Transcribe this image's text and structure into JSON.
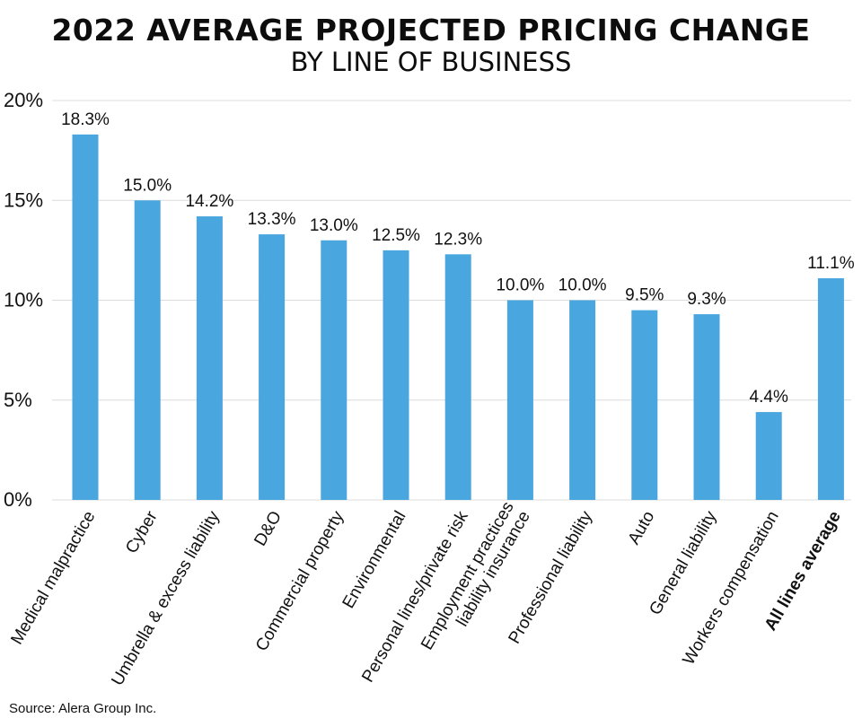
{
  "title": "2022 AVERAGE PROJECTED PRICING CHANGE",
  "subtitle": "BY LINE OF BUSINESS",
  "source": "Source: Alera Group Inc.",
  "colors": {
    "bar": "#4aa6df",
    "grid": "#dcdcdc",
    "text": "#111111"
  },
  "chart_data": {
    "type": "bar",
    "categories": [
      "Medical malpractice",
      "Cyber",
      "Umbrella & excess liability",
      "D&O",
      "Commercial property",
      "Environmental",
      "Personal lines/private risk",
      "Employment practices\nliability insurance",
      "Professional liability",
      "Auto",
      "General liability",
      "Workers compensation",
      "All lines average"
    ],
    "values": [
      18.3,
      15.0,
      14.2,
      13.3,
      13.0,
      12.5,
      12.3,
      10.0,
      10.0,
      9.5,
      9.3,
      4.4,
      11.1
    ],
    "value_labels": [
      "18.3%",
      "15.0%",
      "14.2%",
      "13.3%",
      "13.0%",
      "12.5%",
      "12.3%",
      "10.0%",
      "10.0%",
      "9.5%",
      "9.3%",
      "4.4%",
      "11.1%"
    ],
    "bold_categories": [
      "All lines average"
    ],
    "ylim": [
      0,
      20
    ],
    "yticks": [
      0,
      5,
      10,
      15,
      20
    ],
    "ytick_labels": [
      "0%",
      "5%",
      "10%",
      "15%",
      "20%"
    ],
    "xlabel": "",
    "ylabel": "",
    "grid": true,
    "legend": "none"
  }
}
